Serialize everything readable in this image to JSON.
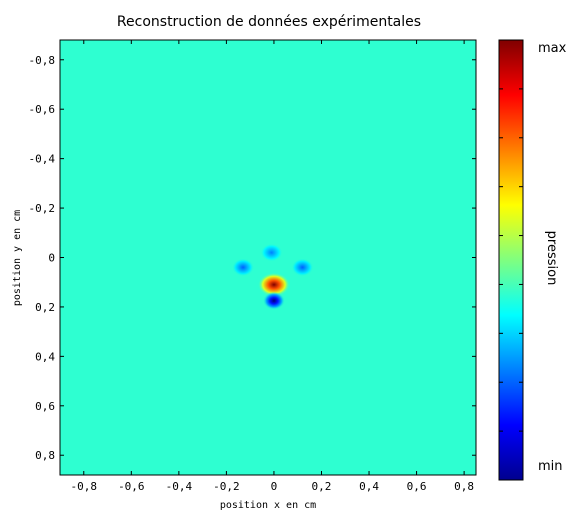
{
  "chart_data": {
    "type": "heatmap",
    "title": "Reconstruction de données expérimentales",
    "xlabel": "position x en cm",
    "ylabel": "position y en cm",
    "xlim": [
      -0.9,
      0.85
    ],
    "ylim": [
      -0.88,
      0.88
    ],
    "y_inverted": true,
    "x_ticks": [
      -0.8,
      -0.6,
      -0.4,
      -0.2,
      0,
      0.2,
      0.4,
      0.6,
      0.8
    ],
    "x_tick_labels": [
      "-0,8",
      "-0,6",
      "-0,4",
      "-0,2",
      "0",
      "0,2",
      "0,4",
      "0,6",
      "0,8"
    ],
    "y_ticks": [
      -0.8,
      -0.6,
      -0.4,
      -0.2,
      0,
      0.2,
      0.4,
      0.6,
      0.8
    ],
    "y_tick_labels": [
      "-0,8",
      "-0,6",
      "-0,4",
      "-0,2",
      "0",
      "0,2",
      "0,4",
      "0,6",
      "0,8"
    ],
    "colormap": "jet",
    "colorbar": {
      "label": "pression",
      "max_label": "max",
      "min_label": "min"
    },
    "background_level": 0.42,
    "features": [
      {
        "kind": "peak",
        "x": 0.0,
        "y": 0.11,
        "level": 1.0
      },
      {
        "kind": "trough",
        "x": 0.0,
        "y": 0.175,
        "level": 0.0
      },
      {
        "kind": "trough",
        "x": -0.13,
        "y": 0.04,
        "level": 0.22
      },
      {
        "kind": "trough",
        "x": 0.12,
        "y": 0.04,
        "level": 0.22
      },
      {
        "kind": "trough",
        "x": -0.01,
        "y": -0.02,
        "level": 0.25
      }
    ],
    "grid": false
  }
}
